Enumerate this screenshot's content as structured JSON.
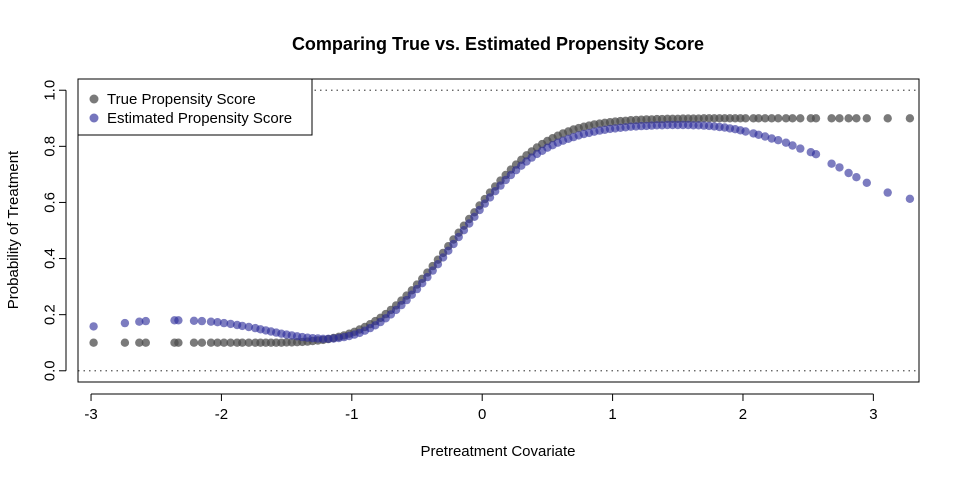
{
  "chart_data": {
    "type": "scatter",
    "title": "Comparing True vs. Estimated Propensity Score",
    "xlabel": "Pretreatment Covariate",
    "ylabel": "Probability of Treatment",
    "xlim": [
      -3.1,
      3.35
    ],
    "ylim": [
      -0.04,
      1.04
    ],
    "xticks": [
      -3,
      -2,
      -1,
      0,
      1,
      2,
      3
    ],
    "xtick_labels": [
      "-3",
      "-2",
      "-1",
      "0",
      "1",
      "2",
      "3"
    ],
    "yticks": [
      0.0,
      0.2,
      0.4,
      0.6,
      0.8,
      1.0
    ],
    "ytick_labels": [
      "0.0",
      "0.2",
      "0.4",
      "0.6",
      "0.8",
      "1.0"
    ],
    "reference_lines": [
      0.0,
      1.0
    ],
    "grid": false,
    "legend_position": "top-left",
    "series": [
      {
        "name": "True Propensity Score",
        "color": "#4d4d4d",
        "points": [
          [
            -2.98,
            0.1
          ],
          [
            -2.74,
            0.1
          ],
          [
            -2.63,
            0.1
          ],
          [
            -2.58,
            0.1
          ],
          [
            -2.36,
            0.1
          ],
          [
            -2.33,
            0.1
          ],
          [
            -2.21,
            0.1
          ],
          [
            -2.15,
            0.1
          ],
          [
            -2.08,
            0.1
          ],
          [
            -2.03,
            0.1
          ],
          [
            -1.98,
            0.1
          ],
          [
            -1.93,
            0.1
          ],
          [
            -1.88,
            0.1
          ],
          [
            -1.84,
            0.1
          ],
          [
            -1.79,
            0.1
          ],
          [
            -1.74,
            0.1
          ],
          [
            -1.7,
            0.1
          ],
          [
            -1.66,
            0.1
          ],
          [
            -1.62,
            0.1
          ],
          [
            -1.58,
            0.1
          ],
          [
            -1.54,
            0.1
          ],
          [
            -1.5,
            0.101
          ],
          [
            -1.46,
            0.101
          ],
          [
            -1.42,
            0.102
          ],
          [
            -1.38,
            0.103
          ],
          [
            -1.34,
            0.104
          ],
          [
            -1.3,
            0.106
          ],
          [
            -1.26,
            0.108
          ],
          [
            -1.22,
            0.11
          ],
          [
            -1.18,
            0.113
          ],
          [
            -1.14,
            0.117
          ],
          [
            -1.1,
            0.121
          ],
          [
            -1.06,
            0.126
          ],
          [
            -1.02,
            0.132
          ],
          [
            -0.98,
            0.139
          ],
          [
            -0.94,
            0.147
          ],
          [
            -0.9,
            0.156
          ],
          [
            -0.86,
            0.166
          ],
          [
            -0.82,
            0.177
          ],
          [
            -0.78,
            0.189
          ],
          [
            -0.74,
            0.202
          ],
          [
            -0.7,
            0.217
          ],
          [
            -0.66,
            0.233
          ],
          [
            -0.62,
            0.25
          ],
          [
            -0.58,
            0.268
          ],
          [
            -0.54,
            0.287
          ],
          [
            -0.5,
            0.307
          ],
          [
            -0.46,
            0.328
          ],
          [
            -0.42,
            0.35
          ],
          [
            -0.38,
            0.373
          ],
          [
            -0.34,
            0.396
          ],
          [
            -0.3,
            0.42
          ],
          [
            -0.26,
            0.444
          ],
          [
            -0.22,
            0.468
          ],
          [
            -0.18,
            0.492
          ],
          [
            -0.14,
            0.517
          ],
          [
            -0.1,
            0.541
          ],
          [
            -0.06,
            0.565
          ],
          [
            -0.02,
            0.589
          ],
          [
            0.02,
            0.612
          ],
          [
            0.06,
            0.635
          ],
          [
            0.1,
            0.657
          ],
          [
            0.14,
            0.678
          ],
          [
            0.18,
            0.698
          ],
          [
            0.22,
            0.717
          ],
          [
            0.26,
            0.735
          ],
          [
            0.3,
            0.752
          ],
          [
            0.34,
            0.768
          ],
          [
            0.38,
            0.782
          ],
          [
            0.42,
            0.796
          ],
          [
            0.46,
            0.808
          ],
          [
            0.5,
            0.819
          ],
          [
            0.54,
            0.829
          ],
          [
            0.58,
            0.838
          ],
          [
            0.62,
            0.846
          ],
          [
            0.66,
            0.853
          ],
          [
            0.7,
            0.86
          ],
          [
            0.74,
            0.865
          ],
          [
            0.78,
            0.87
          ],
          [
            0.82,
            0.874
          ],
          [
            0.86,
            0.878
          ],
          [
            0.9,
            0.881
          ],
          [
            0.94,
            0.884
          ],
          [
            0.98,
            0.886
          ],
          [
            1.02,
            0.888
          ],
          [
            1.06,
            0.89
          ],
          [
            1.1,
            0.891
          ],
          [
            1.14,
            0.893
          ],
          [
            1.18,
            0.894
          ],
          [
            1.22,
            0.895
          ],
          [
            1.26,
            0.896
          ],
          [
            1.3,
            0.896
          ],
          [
            1.34,
            0.897
          ],
          [
            1.38,
            0.897
          ],
          [
            1.42,
            0.898
          ],
          [
            1.46,
            0.898
          ],
          [
            1.5,
            0.898
          ],
          [
            1.54,
            0.899
          ],
          [
            1.58,
            0.899
          ],
          [
            1.62,
            0.899
          ],
          [
            1.66,
            0.899
          ],
          [
            1.7,
            0.9
          ],
          [
            1.74,
            0.9
          ],
          [
            1.78,
            0.9
          ],
          [
            1.82,
            0.9
          ],
          [
            1.86,
            0.9
          ],
          [
            1.9,
            0.9
          ],
          [
            1.94,
            0.9
          ],
          [
            1.98,
            0.9
          ],
          [
            2.02,
            0.9
          ],
          [
            2.08,
            0.9
          ],
          [
            2.12,
            0.9
          ],
          [
            2.17,
            0.9
          ],
          [
            2.22,
            0.9
          ],
          [
            2.27,
            0.9
          ],
          [
            2.33,
            0.9
          ],
          [
            2.38,
            0.9
          ],
          [
            2.44,
            0.9
          ],
          [
            2.52,
            0.9
          ],
          [
            2.56,
            0.9
          ],
          [
            2.68,
            0.9
          ],
          [
            2.74,
            0.9
          ],
          [
            2.81,
            0.9
          ],
          [
            2.87,
            0.9
          ],
          [
            2.95,
            0.9
          ],
          [
            3.11,
            0.9
          ],
          [
            3.28,
            0.9
          ]
        ]
      },
      {
        "name": "Estimated Propensity Score",
        "color": "#2b2b9a",
        "points": [
          [
            -2.98,
            0.158
          ],
          [
            -2.74,
            0.17
          ],
          [
            -2.63,
            0.175
          ],
          [
            -2.58,
            0.177
          ],
          [
            -2.36,
            0.18
          ],
          [
            -2.33,
            0.18
          ],
          [
            -2.21,
            0.178
          ],
          [
            -2.15,
            0.177
          ],
          [
            -2.08,
            0.175
          ],
          [
            -2.03,
            0.173
          ],
          [
            -1.98,
            0.17
          ],
          [
            -1.93,
            0.167
          ],
          [
            -1.88,
            0.163
          ],
          [
            -1.84,
            0.16
          ],
          [
            -1.79,
            0.156
          ],
          [
            -1.74,
            0.152
          ],
          [
            -1.7,
            0.148
          ],
          [
            -1.66,
            0.144
          ],
          [
            -1.62,
            0.14
          ],
          [
            -1.58,
            0.136
          ],
          [
            -1.54,
            0.132
          ],
          [
            -1.5,
            0.129
          ],
          [
            -1.46,
            0.126
          ],
          [
            -1.42,
            0.123
          ],
          [
            -1.38,
            0.12
          ],
          [
            -1.34,
            0.118
          ],
          [
            -1.3,
            0.116
          ],
          [
            -1.26,
            0.115
          ],
          [
            -1.22,
            0.114
          ],
          [
            -1.18,
            0.114
          ],
          [
            -1.14,
            0.115
          ],
          [
            -1.1,
            0.117
          ],
          [
            -1.06,
            0.12
          ],
          [
            -1.02,
            0.124
          ],
          [
            -0.98,
            0.129
          ],
          [
            -0.94,
            0.135
          ],
          [
            -0.9,
            0.143
          ],
          [
            -0.86,
            0.152
          ],
          [
            -0.82,
            0.162
          ],
          [
            -0.78,
            0.174
          ],
          [
            -0.74,
            0.187
          ],
          [
            -0.7,
            0.201
          ],
          [
            -0.66,
            0.217
          ],
          [
            -0.62,
            0.234
          ],
          [
            -0.58,
            0.252
          ],
          [
            -0.54,
            0.271
          ],
          [
            -0.5,
            0.291
          ],
          [
            -0.46,
            0.312
          ],
          [
            -0.42,
            0.334
          ],
          [
            -0.38,
            0.357
          ],
          [
            -0.34,
            0.38
          ],
          [
            -0.3,
            0.404
          ],
          [
            -0.26,
            0.428
          ],
          [
            -0.22,
            0.452
          ],
          [
            -0.18,
            0.477
          ],
          [
            -0.14,
            0.501
          ],
          [
            -0.1,
            0.525
          ],
          [
            -0.06,
            0.549
          ],
          [
            -0.02,
            0.573
          ],
          [
            0.02,
            0.596
          ],
          [
            0.06,
            0.618
          ],
          [
            0.1,
            0.64
          ],
          [
            0.14,
            0.66
          ],
          [
            0.18,
            0.68
          ],
          [
            0.22,
            0.698
          ],
          [
            0.26,
            0.715
          ],
          [
            0.3,
            0.731
          ],
          [
            0.34,
            0.746
          ],
          [
            0.38,
            0.76
          ],
          [
            0.42,
            0.773
          ],
          [
            0.46,
            0.784
          ],
          [
            0.5,
            0.795
          ],
          [
            0.54,
            0.804
          ],
          [
            0.58,
            0.813
          ],
          [
            0.62,
            0.82
          ],
          [
            0.66,
            0.827
          ],
          [
            0.7,
            0.833
          ],
          [
            0.74,
            0.839
          ],
          [
            0.78,
            0.844
          ],
          [
            0.82,
            0.848
          ],
          [
            0.86,
            0.852
          ],
          [
            0.9,
            0.856
          ],
          [
            0.94,
            0.859
          ],
          [
            0.98,
            0.862
          ],
          [
            1.02,
            0.864
          ],
          [
            1.06,
            0.866
          ],
          [
            1.1,
            0.868
          ],
          [
            1.14,
            0.87
          ],
          [
            1.18,
            0.871
          ],
          [
            1.22,
            0.872
          ],
          [
            1.26,
            0.873
          ],
          [
            1.3,
            0.874
          ],
          [
            1.34,
            0.875
          ],
          [
            1.38,
            0.875
          ],
          [
            1.42,
            0.876
          ],
          [
            1.46,
            0.876
          ],
          [
            1.5,
            0.876
          ],
          [
            1.54,
            0.876
          ],
          [
            1.58,
            0.876
          ],
          [
            1.62,
            0.875
          ],
          [
            1.66,
            0.875
          ],
          [
            1.7,
            0.874
          ],
          [
            1.74,
            0.873
          ],
          [
            1.78,
            0.871
          ],
          [
            1.82,
            0.869
          ],
          [
            1.86,
            0.867
          ],
          [
            1.9,
            0.864
          ],
          [
            1.94,
            0.861
          ],
          [
            1.98,
            0.857
          ],
          [
            2.02,
            0.853
          ],
          [
            2.08,
            0.846
          ],
          [
            2.12,
            0.841
          ],
          [
            2.17,
            0.835
          ],
          [
            2.22,
            0.828
          ],
          [
            2.27,
            0.822
          ],
          [
            2.33,
            0.813
          ],
          [
            2.38,
            0.803
          ],
          [
            2.44,
            0.792
          ],
          [
            2.52,
            0.779
          ],
          [
            2.56,
            0.772
          ],
          [
            2.68,
            0.738
          ],
          [
            2.74,
            0.725
          ],
          [
            2.81,
            0.705
          ],
          [
            2.87,
            0.69
          ],
          [
            2.95,
            0.67
          ],
          [
            3.11,
            0.635
          ],
          [
            3.28,
            0.613
          ]
        ]
      }
    ]
  }
}
